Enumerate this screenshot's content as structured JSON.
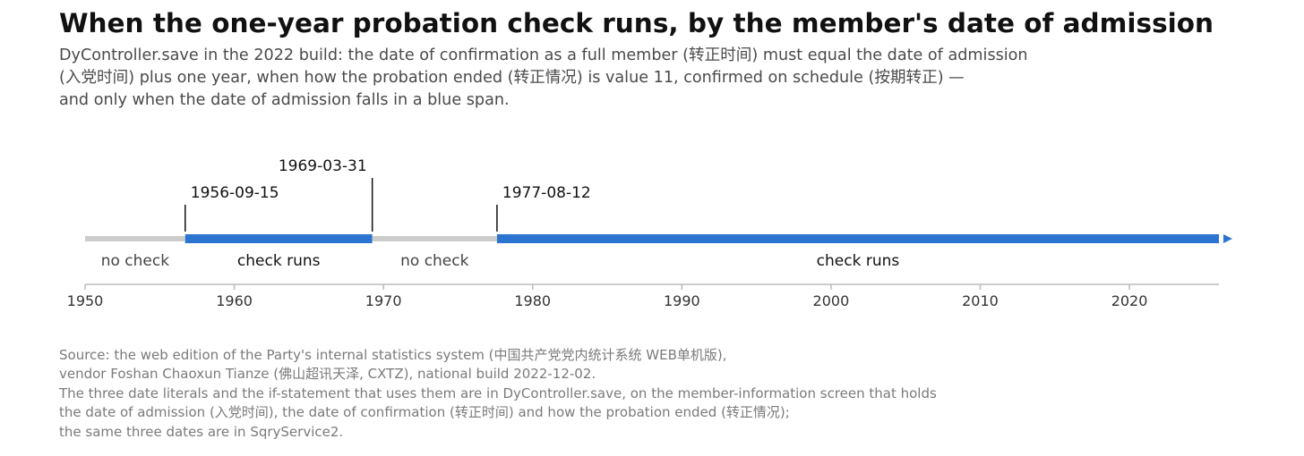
{
  "title": "When the one-year probation check runs, by the member's date of admission",
  "subtitle": [
    "DyController.save in the 2022 build: the date of confirmation as a full member (转正时间) must equal the date of admission",
    "(入党时间) plus one year, when how the probation ended (转正情况) is value 11, confirmed on schedule (按期转正) —",
    "and only when the date of admission falls in a blue span."
  ],
  "source": [
    "Source: the web edition of the Party's internal statistics system (中国共产党党内统计系统 WEB单机版),",
    "vendor Foshan Chaoxun Tianze (佛山超讯天泽, CXTZ), national build 2022-12-02.",
    "The three date literals and the if-statement that uses them are in DyController.save, on the member-information screen that holds",
    "the date of admission (入党时间), the date of confirmation (转正时间) and how the probation ended (转正情况);",
    "the same three dates are in SqryService2."
  ],
  "colors": {
    "active": "#2b74d0",
    "inactive": "#cccccc",
    "axis": "#bbbbbb",
    "label_active": "#111111",
    "label_inactive": "#444444"
  },
  "chart_data": {
    "type": "timeline",
    "xlim": [
      1950,
      2026
    ],
    "ticks": [
      1950,
      1960,
      1970,
      1980,
      1990,
      2000,
      2010,
      2020
    ],
    "spans": [
      {
        "start": 1950,
        "end": 1956.71,
        "label": "no check",
        "active": false
      },
      {
        "start": 1956.71,
        "end": 1969.25,
        "label": "check runs",
        "active": true
      },
      {
        "start": 1969.25,
        "end": 1977.61,
        "label": "no check",
        "active": false
      },
      {
        "start": 1977.61,
        "end": 2026,
        "label": "check runs",
        "active": true
      }
    ],
    "markers": [
      {
        "value": 1956.71,
        "label": "1956-09-15",
        "level": 1
      },
      {
        "value": 1969.25,
        "label": "1969-03-31",
        "level": 2
      },
      {
        "value": 1977.61,
        "label": "1977-08-12",
        "level": 1
      }
    ],
    "open_ended": true
  }
}
